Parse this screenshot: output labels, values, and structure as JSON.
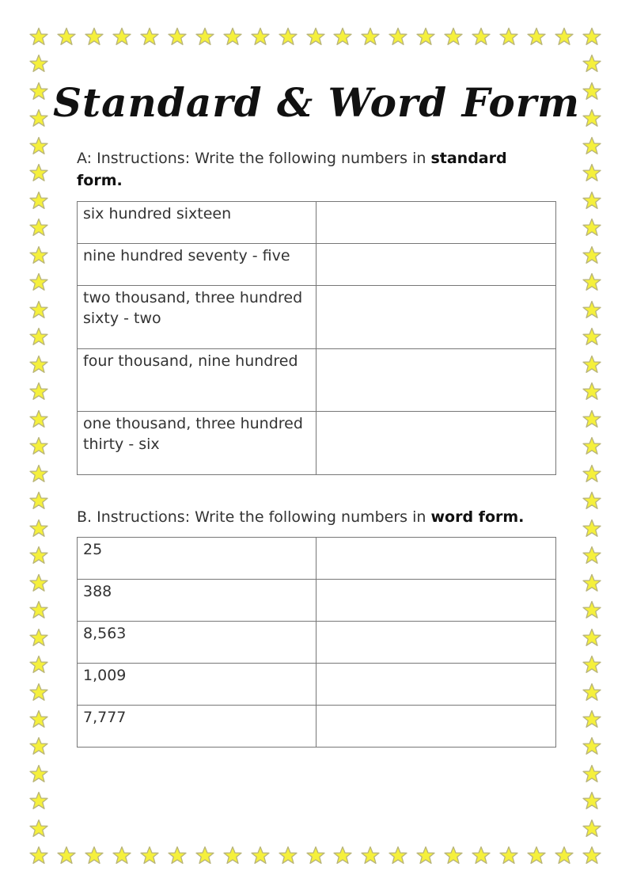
{
  "title": "Standard & Word Form",
  "border": {
    "icon": "star-icon",
    "fill_color": "#f5f03c",
    "edge_color": "#b8b47a"
  },
  "section_a": {
    "instructions_prefix": "A: Instructions: Write the following numbers in ",
    "instructions_bold": "standard form.",
    "rows": [
      {
        "prompt": "six hundred sixteen",
        "answer": ""
      },
      {
        "prompt": "nine hundred seventy - five",
        "answer": ""
      },
      {
        "prompt": "two thousand, three hundred sixty - two",
        "answer": ""
      },
      {
        "prompt": "four thousand, nine hundred",
        "answer": ""
      },
      {
        "prompt": "one thousand, three hundred thirty - six",
        "answer": ""
      }
    ]
  },
  "section_b": {
    "instructions_prefix": "B. Instructions: Write the following numbers in ",
    "instructions_bold": "word form.",
    "rows": [
      {
        "prompt": "25",
        "answer": ""
      },
      {
        "prompt": "388",
        "answer": ""
      },
      {
        "prompt": "8,563",
        "answer": ""
      },
      {
        "prompt": "1,009",
        "answer": ""
      },
      {
        "prompt": "7,777",
        "answer": ""
      }
    ]
  }
}
